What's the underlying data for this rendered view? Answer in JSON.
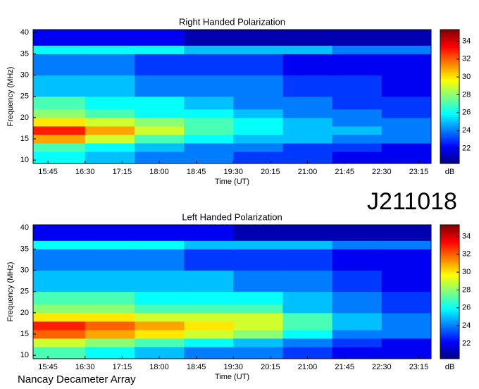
{
  "chart_data": [
    {
      "type": "heatmap",
      "title": "Right Handed Polarization",
      "xlabel": "Time (UT)",
      "ylabel": "Frequency (MHz)",
      "colorbar_label": "dB",
      "colormap": "jet",
      "xlim": [
        15.45,
        23.5
      ],
      "ylim": [
        9.2,
        40.7
      ],
      "clim": [
        20.3,
        35.3
      ],
      "xticks": [
        {
          "value": 15.75,
          "label": "15:45"
        },
        {
          "value": 16.5,
          "label": "16:30"
        },
        {
          "value": 17.25,
          "label": "17:15"
        },
        {
          "value": 18,
          "label": "18:00"
        },
        {
          "value": 18.75,
          "label": "18:45"
        },
        {
          "value": 19.5,
          "label": "19:30"
        },
        {
          "value": 20.25,
          "label": "20:15"
        },
        {
          "value": 21,
          "label": "21:00"
        },
        {
          "value": 21.75,
          "label": "21:45"
        },
        {
          "value": 22.5,
          "label": "22:30"
        },
        {
          "value": 23.25,
          "label": "23:15"
        }
      ],
      "yticks": [
        10,
        15,
        20,
        25,
        30,
        35,
        40
      ],
      "cticks": [
        22,
        24,
        26,
        28,
        30,
        32,
        34
      ],
      "x_bins": [
        15.45,
        16.5,
        17.5,
        18.5,
        19.5,
        20.5,
        21.5,
        22.5,
        23.5
      ],
      "y_bins": [
        9.2,
        12,
        14,
        16,
        18,
        20,
        22,
        25,
        30,
        35,
        37,
        40.7
      ],
      "values": [
        [
          26,
          25,
          24,
          24,
          23,
          23,
          22,
          22
        ],
        [
          27,
          26,
          25,
          24,
          24,
          23,
          23,
          22
        ],
        [
          31,
          29,
          27,
          26,
          25,
          25,
          24,
          24
        ],
        [
          33,
          31,
          29,
          27,
          26,
          25,
          25,
          24
        ],
        [
          30,
          29,
          28,
          27,
          26,
          25,
          24,
          24
        ],
        [
          28,
          27,
          26,
          26,
          25,
          24,
          24,
          23
        ],
        [
          27,
          26,
          26,
          25,
          24,
          24,
          23,
          23
        ],
        [
          25,
          25,
          24,
          24,
          24,
          23,
          23,
          22
        ],
        [
          24,
          24,
          23,
          23,
          23,
          22,
          22,
          22
        ],
        [
          26,
          26,
          26,
          25,
          25,
          25,
          24,
          24
        ],
        [
          22,
          22,
          22,
          21,
          21,
          21,
          21,
          21
        ]
      ]
    },
    {
      "type": "heatmap",
      "title": "Left Handed Polarization",
      "xlabel": "Time (UT)",
      "ylabel": "Frequency (MHz)",
      "colorbar_label": "dB",
      "colormap": "jet",
      "xlim": [
        15.45,
        23.5
      ],
      "ylim": [
        9.2,
        40.7
      ],
      "clim": [
        20.3,
        35.3
      ],
      "xticks": [
        {
          "value": 15.75,
          "label": "15:45"
        },
        {
          "value": 16.5,
          "label": "16:30"
        },
        {
          "value": 17.25,
          "label": "17:15"
        },
        {
          "value": 18,
          "label": "18:00"
        },
        {
          "value": 18.75,
          "label": "18:45"
        },
        {
          "value": 19.5,
          "label": "19:30"
        },
        {
          "value": 20.25,
          "label": "20:15"
        },
        {
          "value": 21,
          "label": "21:00"
        },
        {
          "value": 21.75,
          "label": "21:45"
        },
        {
          "value": 22.5,
          "label": "22:30"
        },
        {
          "value": 23.25,
          "label": "23:15"
        }
      ],
      "yticks": [
        10,
        15,
        20,
        25,
        30,
        35,
        40
      ],
      "cticks": [
        22,
        24,
        26,
        28,
        30,
        32,
        34
      ],
      "x_bins": [
        15.45,
        16.5,
        17.5,
        18.5,
        19.5,
        20.5,
        21.5,
        22.5,
        23.5
      ],
      "y_bins": [
        9.2,
        12,
        14,
        16,
        18,
        20,
        22,
        25,
        30,
        35,
        37,
        40.7
      ],
      "values": [
        [
          27,
          26,
          25,
          24,
          24,
          23,
          22,
          22
        ],
        [
          29,
          28,
          27,
          26,
          25,
          24,
          23,
          22
        ],
        [
          32,
          31,
          30,
          29,
          28,
          26,
          24,
          24
        ],
        [
          33,
          32,
          31,
          30,
          29,
          27,
          25,
          24
        ],
        [
          30,
          30,
          29,
          29,
          29,
          27,
          25,
          24
        ],
        [
          28,
          28,
          27,
          27,
          27,
          25,
          24,
          23
        ],
        [
          27,
          27,
          26,
          26,
          26,
          25,
          24,
          23
        ],
        [
          25,
          25,
          25,
          25,
          24,
          24,
          23,
          22
        ],
        [
          24,
          24,
          24,
          23,
          23,
          23,
          22,
          22
        ],
        [
          26,
          26,
          26,
          25,
          25,
          25,
          24,
          24
        ],
        [
          22,
          22,
          22,
          22,
          21,
          21,
          21,
          21
        ]
      ]
    }
  ],
  "figure_label": "J211018",
  "footer": "Nancay Decameter Array"
}
